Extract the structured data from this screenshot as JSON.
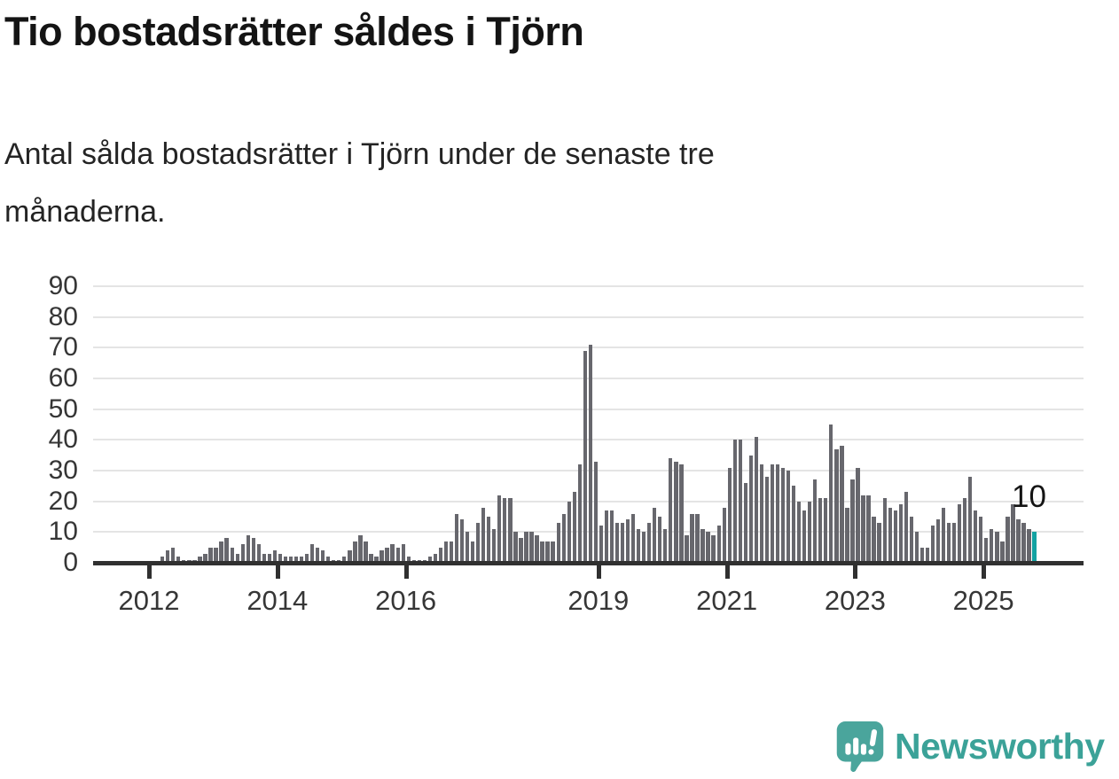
{
  "header": {
    "title": "Tio bostadsrätter såldes i Tjörn",
    "subtitle": "Antal sålda bostadsrätter i Tjörn under de senaste tre månaderna.",
    "subtitle_lines": [
      "Antal sålda bostadsrätter i Tjörn under de senaste tre",
      "månaderna."
    ]
  },
  "chart_data": {
    "type": "bar",
    "title": "Tio bostadsrätter såldes i Tjörn",
    "subtitle": "Antal sålda bostadsrätter i Tjörn under de senaste tre månaderna.",
    "xlabel": "",
    "ylabel": "",
    "ylim": [
      0,
      90
    ],
    "grid": true,
    "legend": false,
    "y_ticks": [
      0,
      10,
      20,
      30,
      40,
      50,
      60,
      70,
      80,
      90
    ],
    "x_tick_labels": [
      "2012",
      "2014",
      "2016",
      "2019",
      "2021",
      "2023",
      "2025"
    ],
    "axis_origin_month": "2012-01",
    "start_month": "2012-03",
    "end_month": "2025-10",
    "values": [
      2,
      4,
      5,
      2,
      1,
      1,
      1,
      2,
      3,
      5,
      5,
      7,
      8,
      5,
      3,
      6,
      9,
      8,
      6,
      3,
      3,
      4,
      3,
      2,
      2,
      2,
      2,
      3,
      6,
      5,
      4,
      2,
      1,
      1,
      2,
      4,
      7,
      9,
      7,
      3,
      2,
      4,
      5,
      6,
      5,
      6,
      2,
      1,
      1,
      1,
      2,
      3,
      5,
      7,
      7,
      16,
      14,
      10,
      7,
      13,
      18,
      15,
      11,
      22,
      21,
      21,
      10,
      8,
      10,
      10,
      9,
      7,
      7,
      7,
      13,
      16,
      20,
      23,
      32,
      69,
      71,
      33,
      12,
      17,
      17,
      13,
      13,
      14,
      16,
      11,
      10,
      13,
      18,
      15,
      11,
      34,
      33,
      32,
      9,
      16,
      16,
      11,
      10,
      9,
      12,
      18,
      31,
      40,
      40,
      26,
      35,
      41,
      32,
      28,
      32,
      32,
      31,
      30,
      25,
      20,
      17,
      20,
      27,
      21,
      21,
      45,
      37,
      38,
      18,
      27,
      31,
      22,
      22,
      15,
      13,
      21,
      18,
      17,
      19,
      23,
      15,
      10,
      5,
      5,
      12,
      14,
      18,
      13,
      13,
      19,
      21,
      28,
      17,
      15,
      8,
      11,
      10,
      7,
      15,
      19,
      14,
      13,
      11,
      10
    ],
    "bar_color": "#67676d",
    "highlight": {
      "position": "last",
      "value": 10,
      "label": "10",
      "color": "#13a2a2"
    }
  },
  "footer": {
    "brand": "Newsworthy",
    "brand_color": "#3ba298",
    "logo_icon": "bar-chart-speech-bubble-icon"
  }
}
